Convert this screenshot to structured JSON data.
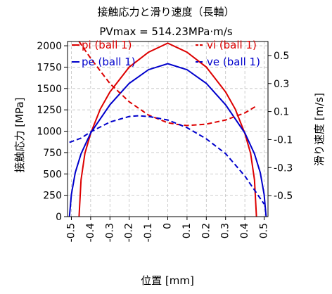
{
  "chart_data": {
    "type": "line",
    "title": "接触応力と滑り速度（長軸）",
    "subtitle": "PVmax = 514.23MPa·m/s",
    "xlabel": "位置 [mm]",
    "ylabel": "接触応力 [MPa]",
    "y2label": "滑り速度 [m/s]",
    "xlim": [
      -0.52,
      0.52
    ],
    "ylim": [
      0,
      2050
    ],
    "y2lim": [
      -0.65,
      0.6
    ],
    "xticks": [
      -0.5,
      -0.4,
      -0.3,
      -0.2,
      -0.1,
      0,
      0.1,
      0.2,
      0.3,
      0.4,
      0.5
    ],
    "xtick_labels": [
      "-0.5",
      "-0.4",
      "-0.3",
      "-0.2",
      "-0.1",
      "0",
      "0.1",
      "0.2",
      "0.3",
      "0.4",
      "0.5"
    ],
    "yticks": [
      0,
      250,
      500,
      750,
      1000,
      1250,
      1500,
      1750,
      2000
    ],
    "ytick_labels": [
      "0",
      "250",
      "500",
      "750",
      "1000",
      "1250",
      "1500",
      "1750",
      "2000"
    ],
    "y2ticks": [
      0.5,
      0.3,
      0.1,
      -0.1,
      -0.3,
      -0.5
    ],
    "y2tick_labels": [
      "0.5",
      "0.3",
      "0.1",
      "-0.1",
      "-0.3",
      "-0.5"
    ],
    "grid": true,
    "legend_left": "top-left",
    "legend_right": "top-right",
    "series": [
      {
        "name": "pi (ball 1)",
        "axis": "left",
        "color": "#dd0000",
        "style": "solid",
        "x": [
          -0.46,
          -0.45,
          -0.43,
          -0.4,
          -0.35,
          -0.3,
          -0.2,
          -0.1,
          0,
          0.1,
          0.2,
          0.3,
          0.35,
          0.4,
          0.43,
          0.45,
          0.46
        ],
        "y": [
          0,
          430,
          740,
          975,
          1260,
          1460,
          1750,
          1925,
          2030,
          1925,
          1750,
          1460,
          1260,
          975,
          740,
          430,
          0
        ]
      },
      {
        "name": "pe (ball 1)",
        "axis": "left",
        "color": "#0000cc",
        "style": "solid",
        "x": [
          -0.51,
          -0.5,
          -0.48,
          -0.45,
          -0.4,
          -0.3,
          -0.2,
          -0.1,
          0,
          0.1,
          0.2,
          0.3,
          0.4,
          0.45,
          0.48,
          0.5,
          0.51
        ],
        "y": [
          0,
          260,
          515,
          735,
          980,
          1310,
          1560,
          1720,
          1790,
          1720,
          1560,
          1310,
          980,
          735,
          515,
          260,
          0
        ]
      },
      {
        "name": "vi (ball 1)",
        "axis": "right",
        "color": "#dd0000",
        "style": "dashed",
        "x": [
          -0.46,
          -0.4,
          -0.3,
          -0.2,
          -0.1,
          0,
          0.05,
          0.1,
          0.2,
          0.3,
          0.4,
          0.46
        ],
        "y": [
          0.6,
          0.48,
          0.3,
          0.17,
          0.075,
          0.02,
          0.008,
          0.0,
          0.01,
          0.04,
          0.09,
          0.14
        ]
      },
      {
        "name": "ve (ball 1)",
        "axis": "right",
        "color": "#0000cc",
        "style": "dashed",
        "x": [
          -0.51,
          -0.45,
          -0.4,
          -0.3,
          -0.2,
          -0.15,
          -0.1,
          0,
          0.1,
          0.2,
          0.3,
          0.4,
          0.45,
          0.5
        ],
        "y": [
          -0.12,
          -0.09,
          -0.045,
          0.025,
          0.065,
          0.07,
          0.065,
          0.04,
          -0.015,
          -0.095,
          -0.2,
          -0.36,
          -0.46,
          -0.56
        ]
      }
    ]
  }
}
